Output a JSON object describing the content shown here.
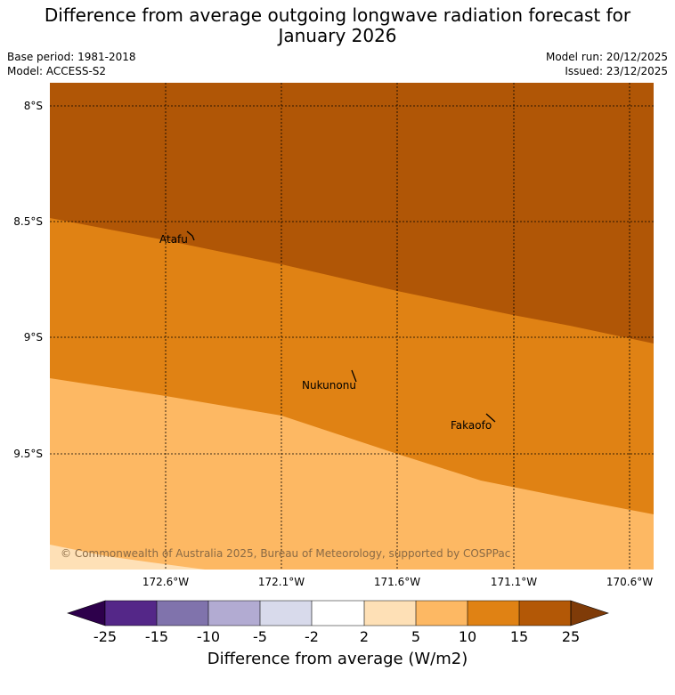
{
  "title": {
    "line1": "Difference from average outgoing longwave radiation forecast for",
    "line2": "January 2026"
  },
  "meta": {
    "base_period": "Base period: 1981-2018",
    "model": "Model: ACCESS-S2",
    "model_run": "Model run: 20/12/2025",
    "issued": "Issued: 23/12/2025"
  },
  "map": {
    "lat_labels": [
      "8°S",
      "8.5°S",
      "9°S",
      "9.5°S"
    ],
    "lon_labels": [
      "172.6°W",
      "172.1°W",
      "171.6°W",
      "171.1°W",
      "170.6°W"
    ],
    "places": [
      "Atafu",
      "Nukunonu",
      "Fakaofo"
    ],
    "credit": "© Commonwealth of Australia 2025, Bureau of Meteorology, supported by COSPPac",
    "field_colors": {
      "15_to_25": "#b05606",
      "10_to_15": "#e08214",
      "5_to_10": "#fdb863",
      "2_to_5": "#fee0b6"
    }
  },
  "colorbar": {
    "title": "Difference from average (W/m2)",
    "tick_labels": [
      "-25",
      "-15",
      "-10",
      "-5",
      "-2",
      "2",
      "5",
      "10",
      "15",
      "25"
    ],
    "colors": [
      "#542788",
      "#8073ac",
      "#b2abd2",
      "#d8daeb",
      "#ffffff",
      "#fee0b6",
      "#fdb863",
      "#e08214",
      "#b35806"
    ],
    "extend_low_color": "#2d004b",
    "extend_high_color": "#7f3b08"
  }
}
